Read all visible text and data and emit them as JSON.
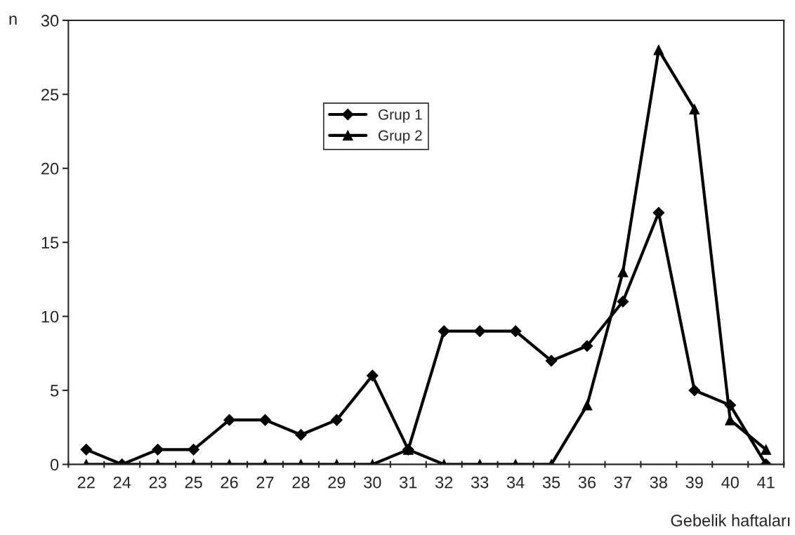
{
  "chart_data": {
    "type": "line",
    "categories": [
      "22",
      "24",
      "23",
      "25",
      "26",
      "27",
      "28",
      "29",
      "30",
      "31",
      "32",
      "33",
      "34",
      "35",
      "36",
      "37",
      "38",
      "39",
      "40",
      "41"
    ],
    "series": [
      {
        "name": "Grup 1",
        "color": "#000000",
        "marker": "diamond",
        "values": [
          1,
          0,
          1,
          1,
          3,
          3,
          2,
          3,
          6,
          1,
          9,
          9,
          9,
          7,
          8,
          11,
          17,
          5,
          4,
          0
        ]
      },
      {
        "name": "Grup 2",
        "color": "#000000",
        "marker": "triangle",
        "values": [
          0,
          0,
          0,
          0,
          0,
          0,
          0,
          0,
          0,
          1,
          0,
          0,
          0,
          0,
          4,
          13,
          28,
          24,
          3,
          1
        ]
      }
    ],
    "ylim": [
      0,
      30
    ],
    "yticks": [
      0,
      5,
      10,
      15,
      20,
      25,
      30
    ],
    "ylabel": "n",
    "xlabel": "Gebelik haftaları",
    "grid": false,
    "legend": "top",
    "line_style": "solid"
  }
}
